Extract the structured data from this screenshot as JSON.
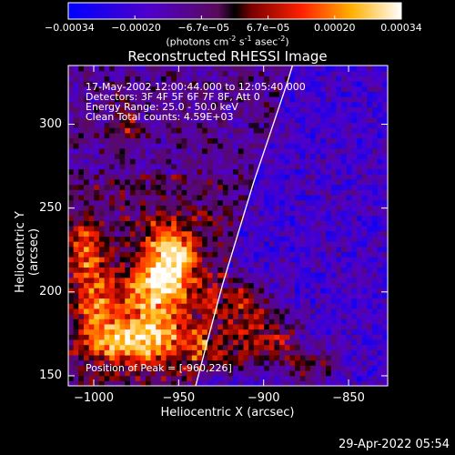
{
  "colorbar": {
    "ticks": [
      "-0.00034",
      "-0.00020",
      "-6.7e-05",
      "6.7e-05",
      "0.00020",
      "0.00034"
    ],
    "unit_main": "(photons cm",
    "unit_sup1": "-2",
    "unit_mid": " s",
    "unit_sup2": "-1",
    "unit_end": " asec",
    "unit_sup3": "-2",
    "unit_close": ")"
  },
  "chart_data": {
    "type": "heatmap",
    "title": "Reconstructed RHESSI Image",
    "xlabel": "Heliocentric X (arcsec)",
    "ylabel": "Heliocentric Y (arcsec)",
    "xlim": [
      -1015,
      -827
    ],
    "ylim": [
      144,
      335
    ],
    "xticks": [
      -1000,
      -950,
      -900,
      -850
    ],
    "yticks": [
      150,
      200,
      250,
      300
    ],
    "xtick_labels": [
      "-1000",
      "-950",
      "-900",
      "-850"
    ],
    "ytick_labels": [
      "150",
      "200",
      "250",
      "300"
    ],
    "colorbar_range": [
      -0.00034,
      0.00034
    ],
    "info_lines": [
      "17-May-2002 12:00:44.000 to 12:05:40.000",
      "Detectors: 3F 4F 5F 6F 7F 8F, Att 0",
      "Energy Range: 25.0 - 50.0 keV",
      "Clean     Total counts: 4.59E+03"
    ],
    "peak_label": "Position of Peak = [-960,226]",
    "peak": [
      -960,
      226
    ],
    "limb": [
      [
        -940,
        144
      ],
      [
        -932,
        175
      ],
      [
        -924,
        205
      ],
      [
        -915,
        235
      ],
      [
        -906,
        265
      ],
      [
        -896,
        295
      ],
      [
        -886,
        325
      ],
      [
        -883,
        335
      ]
    ],
    "bright_sources": [
      {
        "x": -955,
        "y": 223,
        "sx": 10,
        "sy": 14,
        "amp": 1.0
      },
      {
        "x": -965,
        "y": 200,
        "sx": 14,
        "sy": 12,
        "amp": 0.8
      },
      {
        "x": -990,
        "y": 172,
        "sx": 12,
        "sy": 10,
        "amp": 0.7
      },
      {
        "x": -965,
        "y": 172,
        "sx": 14,
        "sy": 10,
        "amp": 0.8
      },
      {
        "x": -1005,
        "y": 225,
        "sx": 8,
        "sy": 12,
        "amp": 0.6
      },
      {
        "x": -1000,
        "y": 195,
        "sx": 8,
        "sy": 12,
        "amp": 0.55
      },
      {
        "x": -915,
        "y": 195,
        "sx": 12,
        "sy": 10,
        "amp": 0.65
      },
      {
        "x": -900,
        "y": 170,
        "sx": 14,
        "sy": 12,
        "amp": 0.7
      },
      {
        "x": -930,
        "y": 165,
        "sx": 10,
        "sy": 10,
        "amp": 0.6
      },
      {
        "x": -980,
        "y": 300,
        "sx": 6,
        "sy": 10,
        "amp": 0.4
      },
      {
        "x": -870,
        "y": 155,
        "sx": 10,
        "sy": 8,
        "amp": 0.4
      }
    ]
  },
  "footer": {
    "timestamp": "29-Apr-2022 05:54"
  }
}
